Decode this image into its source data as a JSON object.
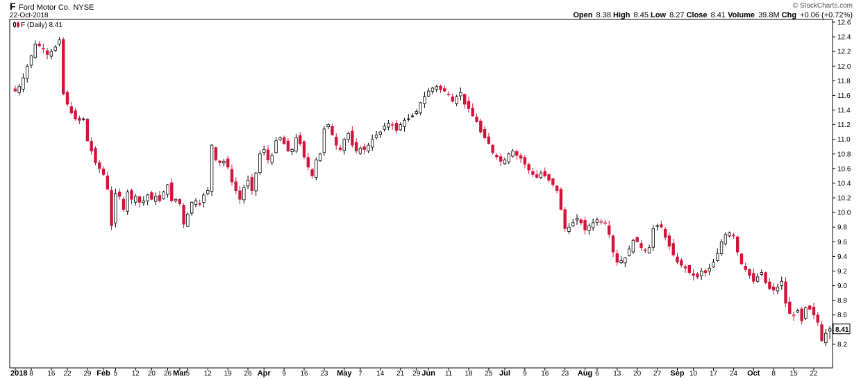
{
  "header": {
    "ticker": "F",
    "company": "Ford Motor Co.",
    "exchange": "NYSE",
    "date": "22-Oct-2018",
    "brand": "© StockCharts.com",
    "open_label": "Open",
    "open": "8.38",
    "high_label": "High",
    "high": "8.45",
    "low_label": "Low",
    "low": "8.27",
    "close_label": "Close",
    "close": "8.41",
    "volume_label": "Volume",
    "volume": "39.8M",
    "chg_label": "Chg",
    "chg": "+0.06 (+0.72%)"
  },
  "legend": {
    "label": "F (Daily) 8.41"
  },
  "colors": {
    "up": "#ffffff",
    "down": "#d2143a",
    "black": "#000000",
    "grid": "#000000"
  },
  "chart_data": {
    "type": "candlestick",
    "title": "Ford Motor Co.",
    "ylim": [
      8.0,
      12.6
    ],
    "y_ticks": [
      "12.6",
      "12.4",
      "12.2",
      "12.0",
      "11.8",
      "11.6",
      "11.4",
      "11.2",
      "11.0",
      "10.8",
      "10.6",
      "10.4",
      "10.2",
      "10.0",
      "9.8",
      "9.6",
      "9.4",
      "9.2",
      "9.0",
      "8.8",
      "8.6",
      "8.4",
      "8.2"
    ],
    "x_ticks": [
      {
        "label": "2018",
        "i": 0,
        "major": true
      },
      {
        "label": "8",
        "i": 4
      },
      {
        "label": "16",
        "i": 9
      },
      {
        "label": "22",
        "i": 13
      },
      {
        "label": "29",
        "i": 18
      },
      {
        "label": "Feb",
        "i": 22,
        "major": true
      },
      {
        "label": "5",
        "i": 25
      },
      {
        "label": "12",
        "i": 30
      },
      {
        "label": "20",
        "i": 34
      },
      {
        "label": "26",
        "i": 38
      },
      {
        "label": "Mar",
        "i": 41,
        "major": true
      },
      {
        "label": "5",
        "i": 43
      },
      {
        "label": "12",
        "i": 48
      },
      {
        "label": "19",
        "i": 53
      },
      {
        "label": "26",
        "i": 58
      },
      {
        "label": "Apr",
        "i": 62,
        "major": true
      },
      {
        "label": "9",
        "i": 67
      },
      {
        "label": "16",
        "i": 72
      },
      {
        "label": "23",
        "i": 77
      },
      {
        "label": "May",
        "i": 82,
        "major": true
      },
      {
        "label": "7",
        "i": 86
      },
      {
        "label": "14",
        "i": 91
      },
      {
        "label": "21",
        "i": 96
      },
      {
        "label": "29",
        "i": 100
      },
      {
        "label": "Jun",
        "i": 103,
        "major": true
      },
      {
        "label": "11",
        "i": 108
      },
      {
        "label": "18",
        "i": 113
      },
      {
        "label": "25",
        "i": 118
      },
      {
        "label": "Jul",
        "i": 122,
        "major": true
      },
      {
        "label": "9",
        "i": 127
      },
      {
        "label": "16",
        "i": 132
      },
      {
        "label": "23",
        "i": 137
      },
      {
        "label": "Aug",
        "i": 142,
        "major": true
      },
      {
        "label": "6",
        "i": 145
      },
      {
        "label": "13",
        "i": 150
      },
      {
        "label": "20",
        "i": 155
      },
      {
        "label": "27",
        "i": 160
      },
      {
        "label": "Sep",
        "i": 165,
        "major": true
      },
      {
        "label": "10",
        "i": 169
      },
      {
        "label": "17",
        "i": 174
      },
      {
        "label": "24",
        "i": 179
      },
      {
        "label": "Oct",
        "i": 184,
        "major": true
      },
      {
        "label": "8",
        "i": 189
      },
      {
        "label": "15",
        "i": 194
      },
      {
        "label": "22",
        "i": 199
      }
    ],
    "last_price": "8.41",
    "closes": [
      11.66,
      11.72,
      11.84,
      12.0,
      12.14,
      12.3,
      12.28,
      12.24,
      12.16,
      12.2,
      12.26,
      12.36,
      11.62,
      11.48,
      11.36,
      11.28,
      11.26,
      11.28,
      10.98,
      10.84,
      10.68,
      10.6,
      10.52,
      10.32,
      9.82,
      10.26,
      10.22,
      10.04,
      10.28,
      10.18,
      10.22,
      10.14,
      10.16,
      10.24,
      10.18,
      10.22,
      10.16,
      10.28,
      10.38,
      10.16,
      10.18,
      10.12,
      9.84,
      9.98,
      10.14,
      10.16,
      10.12,
      10.24,
      10.3,
      10.92,
      10.72,
      10.68,
      10.7,
      10.62,
      10.42,
      10.3,
      10.18,
      10.34,
      10.44,
      10.3,
      10.54,
      10.8,
      10.86,
      10.72,
      10.78,
      10.98,
      11.02,
      10.94,
      10.84,
      10.86,
      11.02,
      10.94,
      10.76,
      10.62,
      10.5,
      10.72,
      10.8,
      11.14,
      11.2,
      11.06,
      10.92,
      10.86,
      11.0,
      11.08,
      10.92,
      10.84,
      10.88,
      10.86,
      10.92,
      11.0,
      11.06,
      11.1,
      11.18,
      11.22,
      11.2,
      11.12,
      11.2,
      11.26,
      11.28,
      11.32,
      11.38,
      11.5,
      11.58,
      11.66,
      11.7,
      11.72,
      11.68,
      11.66,
      11.62,
      11.52,
      11.58,
      11.64,
      11.48,
      11.42,
      11.32,
      11.24,
      11.1,
      11.02,
      10.94,
      10.82,
      10.76,
      10.7,
      10.72,
      10.8,
      10.84,
      10.78,
      10.74,
      10.66,
      10.58,
      10.52,
      10.48,
      10.54,
      10.5,
      10.44,
      10.38,
      10.3,
      10.04,
      9.78,
      9.8,
      9.86,
      9.92,
      9.86,
      9.76,
      9.82,
      9.86,
      9.9,
      9.88,
      9.86,
      9.7,
      9.46,
      9.32,
      9.34,
      9.38,
      9.5,
      9.62,
      9.6,
      9.52,
      9.48,
      9.52,
      9.78,
      9.82,
      9.8,
      9.66,
      9.54,
      9.42,
      9.32,
      9.28,
      9.24,
      9.18,
      9.14,
      9.12,
      9.2,
      9.18,
      9.24,
      9.32,
      9.44,
      9.6,
      9.7,
      9.72,
      9.68,
      9.46,
      9.3,
      9.22,
      9.14,
      9.06,
      9.12,
      9.18,
      9.04,
      8.96,
      8.94,
      8.98,
      9.06,
      8.76,
      8.62,
      8.6,
      8.66,
      8.52,
      8.7,
      8.68,
      8.6,
      8.5,
      8.25,
      8.35,
      8.41
    ]
  }
}
